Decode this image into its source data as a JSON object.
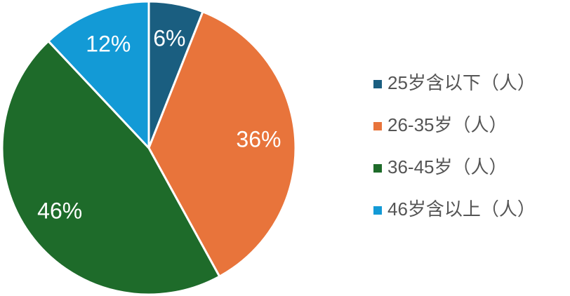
{
  "chart_data": {
    "type": "pie",
    "categories": [
      "25岁含以下（人）",
      "26-35岁（人）",
      "36-45岁（人）",
      "46岁含以上（人）"
    ],
    "values": [
      6,
      36,
      46,
      12
    ],
    "value_labels": [
      "6%",
      "36%",
      "46%",
      "12%"
    ],
    "colors": [
      "#1a5e80",
      "#e8743b",
      "#1e6b2a",
      "#139ad6"
    ],
    "legend": "right"
  }
}
